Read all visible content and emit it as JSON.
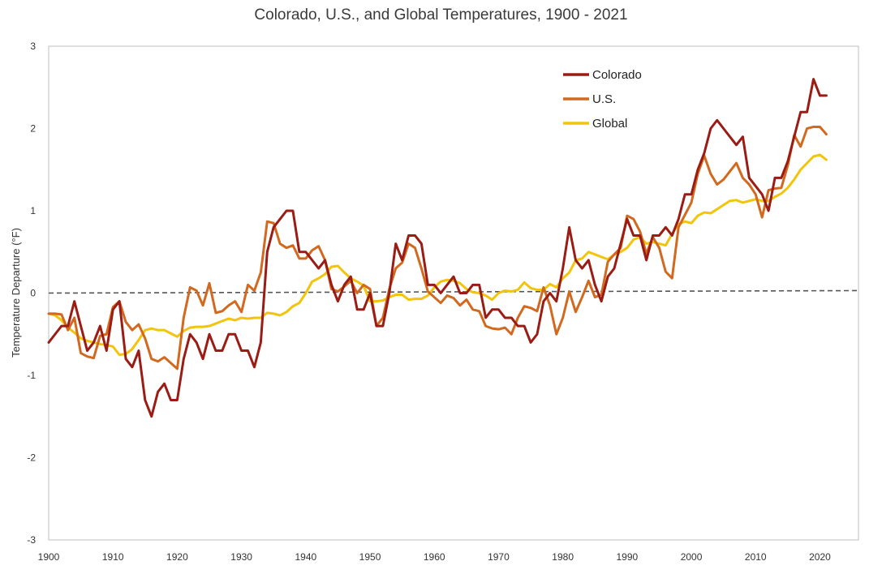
{
  "chart_data": {
    "type": "line",
    "title": "Colorado, U.S., and Global Temperatures, 1900 - 2021",
    "xlabel": "",
    "ylabel": "Temperature Departure (°F)",
    "xlim": [
      1900,
      2026
    ],
    "ylim": [
      -3,
      3
    ],
    "xticks": [
      1900,
      1910,
      1920,
      1930,
      1940,
      1950,
      1960,
      1970,
      1980,
      1990,
      2000,
      2010,
      2020
    ],
    "yticks": [
      -3,
      -2,
      -1,
      0,
      1,
      2,
      3
    ],
    "legend_position": "top-right",
    "grid": false,
    "reference_line": {
      "y0": 0,
      "y1": 0.03,
      "style": "dashed",
      "color": "#555555"
    },
    "x": [
      1900,
      1901,
      1902,
      1903,
      1904,
      1905,
      1906,
      1907,
      1908,
      1909,
      1910,
      1911,
      1912,
      1913,
      1914,
      1915,
      1916,
      1917,
      1918,
      1919,
      1920,
      1921,
      1922,
      1923,
      1924,
      1925,
      1926,
      1927,
      1928,
      1929,
      1930,
      1931,
      1932,
      1933,
      1934,
      1935,
      1936,
      1937,
      1938,
      1939,
      1940,
      1941,
      1942,
      1943,
      1944,
      1945,
      1946,
      1947,
      1948,
      1949,
      1950,
      1951,
      1952,
      1953,
      1954,
      1955,
      1956,
      1957,
      1958,
      1959,
      1960,
      1961,
      1962,
      1963,
      1964,
      1965,
      1966,
      1967,
      1968,
      1969,
      1970,
      1971,
      1972,
      1973,
      1974,
      1975,
      1976,
      1977,
      1978,
      1979,
      1980,
      1981,
      1982,
      1983,
      1984,
      1985,
      1986,
      1987,
      1988,
      1989,
      1990,
      1991,
      1992,
      1993,
      1994,
      1995,
      1996,
      1997,
      1998,
      1999,
      2000,
      2001,
      2002,
      2003,
      2004,
      2005,
      2006,
      2007,
      2008,
      2009,
      2010,
      2011,
      2012,
      2013,
      2014,
      2015,
      2016,
      2017,
      2018,
      2019,
      2020,
      2021
    ],
    "series": [
      {
        "name": "Colorado",
        "color": "#9b1c14",
        "values": [
          -0.6,
          -0.5,
          -0.4,
          -0.4,
          -0.1,
          -0.4,
          -0.7,
          -0.6,
          -0.4,
          -0.7,
          -0.2,
          -0.1,
          -0.8,
          -0.9,
          -0.7,
          -1.3,
          -1.5,
          -1.2,
          -1.1,
          -1.3,
          -1.3,
          -0.8,
          -0.5,
          -0.6,
          -0.8,
          -0.5,
          -0.7,
          -0.7,
          -0.5,
          -0.5,
          -0.7,
          -0.7,
          -0.9,
          -0.6,
          0.5,
          0.8,
          0.9,
          1.0,
          1.0,
          0.5,
          0.5,
          0.4,
          0.3,
          0.4,
          0.1,
          -0.1,
          0.1,
          0.2,
          -0.2,
          -0.2,
          0.0,
          -0.4,
          -0.4,
          0.0,
          0.6,
          0.4,
          0.7,
          0.7,
          0.6,
          0.1,
          0.1,
          0.0,
          0.1,
          0.2,
          0.0,
          0.0,
          0.1,
          0.1,
          -0.3,
          -0.2,
          -0.2,
          -0.3,
          -0.3,
          -0.4,
          -0.4,
          -0.6,
          -0.5,
          -0.1,
          0.0,
          -0.1,
          0.3,
          0.8,
          0.4,
          0.3,
          0.4,
          0.1,
          -0.1,
          0.2,
          0.3,
          0.6,
          0.9,
          0.7,
          0.7,
          0.4,
          0.7,
          0.7,
          0.8,
          0.7,
          0.9,
          1.2,
          1.2,
          1.5,
          1.7,
          2.0,
          2.1,
          2.0,
          1.9,
          1.8,
          1.9,
          1.4,
          1.3,
          1.2,
          1.0,
          1.4,
          1.4,
          1.6,
          1.9,
          2.2,
          2.2,
          2.6,
          2.4,
          2.4
        ]
      },
      {
        "name": "U.S.",
        "color": "#d2691e",
        "values": [
          -0.25,
          -0.25,
          -0.26,
          -0.45,
          -0.3,
          -0.73,
          -0.77,
          -0.79,
          -0.52,
          -0.5,
          -0.17,
          -0.1,
          -0.35,
          -0.45,
          -0.38,
          -0.55,
          -0.8,
          -0.83,
          -0.78,
          -0.85,
          -0.92,
          -0.3,
          0.07,
          0.03,
          -0.15,
          0.12,
          -0.24,
          -0.22,
          -0.15,
          -0.1,
          -0.23,
          0.1,
          0.03,
          0.25,
          0.87,
          0.85,
          0.6,
          0.55,
          0.58,
          0.42,
          0.42,
          0.52,
          0.57,
          0.4,
          0.05,
          0.02,
          0.08,
          0.15,
          0.0,
          0.1,
          0.05,
          -0.4,
          -0.3,
          0.05,
          0.3,
          0.37,
          0.6,
          0.55,
          0.3,
          0.02,
          -0.05,
          -0.12,
          -0.03,
          -0.06,
          -0.15,
          -0.08,
          -0.2,
          -0.22,
          -0.4,
          -0.43,
          -0.44,
          -0.42,
          -0.5,
          -0.3,
          -0.16,
          -0.18,
          -0.22,
          0.07,
          -0.15,
          -0.5,
          -0.3,
          0.02,
          -0.23,
          -0.05,
          0.15,
          -0.05,
          -0.02,
          0.38,
          0.47,
          0.55,
          0.94,
          0.9,
          0.75,
          0.48,
          0.68,
          0.55,
          0.26,
          0.18,
          0.8,
          0.95,
          1.1,
          1.45,
          1.67,
          1.45,
          1.32,
          1.38,
          1.48,
          1.58,
          1.4,
          1.32,
          1.2,
          0.92,
          1.25,
          1.27,
          1.28,
          1.55,
          1.92,
          1.78,
          2.0,
          2.02,
          2.02,
          1.93
        ]
      },
      {
        "name": "Global",
        "color": "#f2c40a",
        "values": [
          -0.25,
          -0.27,
          -0.33,
          -0.42,
          -0.48,
          -0.55,
          -0.58,
          -0.6,
          -0.62,
          -0.63,
          -0.65,
          -0.75,
          -0.74,
          -0.68,
          -0.57,
          -0.45,
          -0.43,
          -0.45,
          -0.45,
          -0.49,
          -0.53,
          -0.46,
          -0.42,
          -0.41,
          -0.41,
          -0.4,
          -0.37,
          -0.34,
          -0.31,
          -0.33,
          -0.3,
          -0.31,
          -0.3,
          -0.3,
          -0.24,
          -0.25,
          -0.27,
          -0.23,
          -0.16,
          -0.12,
          0.0,
          0.14,
          0.18,
          0.23,
          0.32,
          0.33,
          0.25,
          0.18,
          0.14,
          0.09,
          -0.1,
          -0.1,
          -0.09,
          -0.05,
          -0.02,
          -0.02,
          -0.08,
          -0.07,
          -0.07,
          -0.03,
          0.07,
          0.14,
          0.16,
          0.15,
          0.12,
          0.05,
          0.01,
          0.0,
          -0.03,
          -0.08,
          0.0,
          0.03,
          0.02,
          0.04,
          0.13,
          0.06,
          0.04,
          0.04,
          0.11,
          0.07,
          0.18,
          0.25,
          0.4,
          0.42,
          0.5,
          0.47,
          0.44,
          0.41,
          0.47,
          0.5,
          0.55,
          0.65,
          0.68,
          0.6,
          0.62,
          0.6,
          0.58,
          0.72,
          0.84,
          0.87,
          0.85,
          0.94,
          0.98,
          0.97,
          1.02,
          1.07,
          1.12,
          1.13,
          1.1,
          1.12,
          1.14,
          1.12,
          1.12,
          1.17,
          1.21,
          1.28,
          1.38,
          1.5,
          1.58,
          1.66,
          1.68,
          1.62
        ]
      }
    ]
  }
}
